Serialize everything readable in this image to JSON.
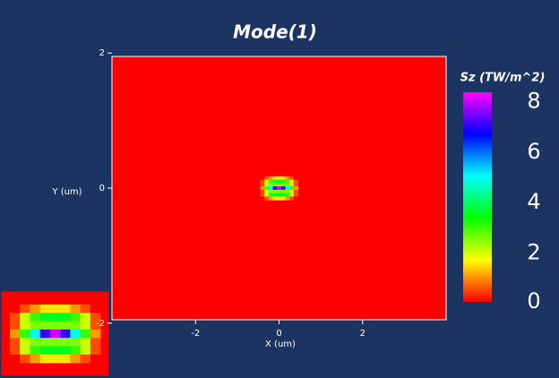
{
  "chart_data": {
    "type": "heatmap",
    "title": "Mode(1)",
    "x_label": "X (um)",
    "y_label": "Y (um)",
    "colorbar_label": "Sz (TW/m^2)",
    "xlim": [
      -4,
      4
    ],
    "xticks": [
      -2,
      0,
      2
    ],
    "ylim": [
      -1.95,
      1.95
    ],
    "yticks": [
      -2,
      0,
      2
    ],
    "clim": [
      0,
      8.3
    ],
    "colorbar_ticks": [
      0,
      2,
      4,
      6,
      8
    ],
    "colormap": [
      "#ff0000",
      "#ffff00",
      "#00ff00",
      "#00ffff",
      "#0000ff",
      "#ff00ff"
    ],
    "x": [
      -0.4,
      -0.3,
      -0.2,
      -0.1,
      0,
      0.1,
      0.2,
      0.3,
      0.4
    ],
    "y": [
      0.15,
      0.1,
      0.05,
      0,
      -0.05,
      -0.1,
      -0.15
    ],
    "z": [
      [
        0,
        0.5,
        1,
        1.5,
        1.5,
        1.5,
        1,
        0.5,
        0
      ],
      [
        0.5,
        2,
        3,
        3.5,
        3.5,
        3.5,
        3,
        2,
        0.5
      ],
      [
        0.5,
        2,
        2.5,
        2.5,
        2.5,
        2.5,
        2.5,
        2,
        0.5
      ],
      [
        1,
        3,
        5,
        7,
        8,
        7,
        5,
        3,
        1
      ],
      [
        0.5,
        2,
        2.5,
        2.5,
        2.5,
        2.5,
        2.5,
        2,
        0.5
      ],
      [
        0.5,
        2,
        3,
        3.5,
        3.5,
        3.5,
        3,
        2,
        0.5
      ],
      [
        0,
        0.5,
        1,
        1.5,
        1.5,
        1.5,
        1,
        0.5,
        0
      ]
    ]
  }
}
